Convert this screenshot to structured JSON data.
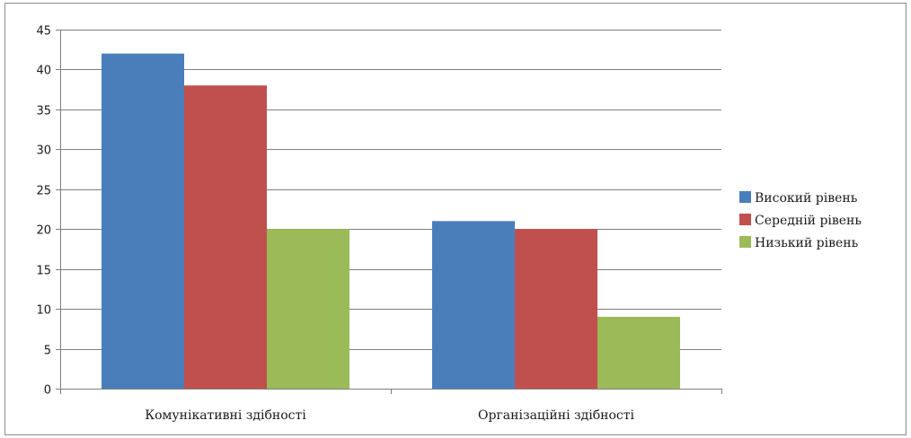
{
  "chart_data": {
    "type": "bar",
    "title": "",
    "xlabel": "",
    "ylabel": "",
    "categories": [
      "Комунікативні здібності",
      "Організаційні здібності"
    ],
    "series": [
      {
        "name": "Високий рівень",
        "values": [
          42,
          21
        ],
        "color": "#4a7ebb"
      },
      {
        "name": "Середній рівень",
        "values": [
          38,
          20
        ],
        "color": "#c0504d"
      },
      {
        "name": "Низький рівень",
        "values": [
          20,
          9
        ],
        "color": "#9bbb59"
      }
    ],
    "ylim": [
      0,
      45
    ],
    "yticks": [
      0,
      5,
      10,
      15,
      20,
      25,
      30,
      35,
      40,
      45
    ],
    "grid": true,
    "legend_position": "right"
  }
}
